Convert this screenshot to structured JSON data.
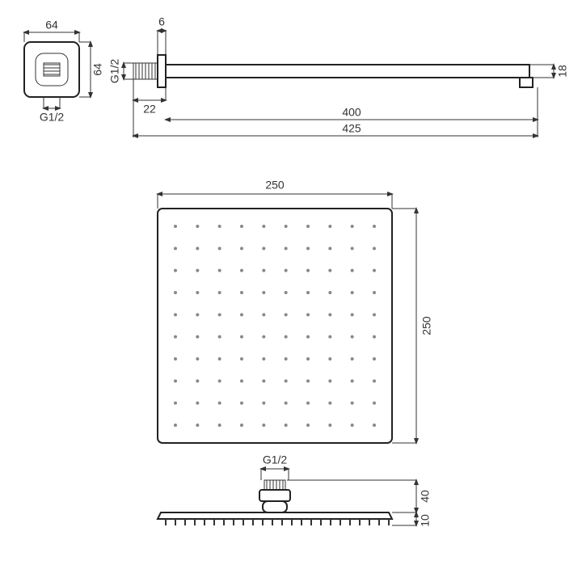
{
  "diagram": {
    "type": "engineering-drawing",
    "background_color": "#ffffff",
    "line_color": "#333333",
    "text_color": "#333333",
    "font_size": 14,
    "mount": {
      "width_label": "64",
      "height_label": "64",
      "thread_label": "G1/2"
    },
    "arm": {
      "flange_thickness_label": "6",
      "thread_label": "G1/2",
      "thread_length_label": "22",
      "height_label": "18",
      "inner_length_label": "400",
      "total_length_label": "425"
    },
    "head": {
      "width_label": "250",
      "height_label": "250",
      "thread_label": "G1/2",
      "connector_height_label": "40",
      "plate_thickness_label": "10",
      "nozzle_grid": 10,
      "nozzle_color": "#888888"
    }
  }
}
